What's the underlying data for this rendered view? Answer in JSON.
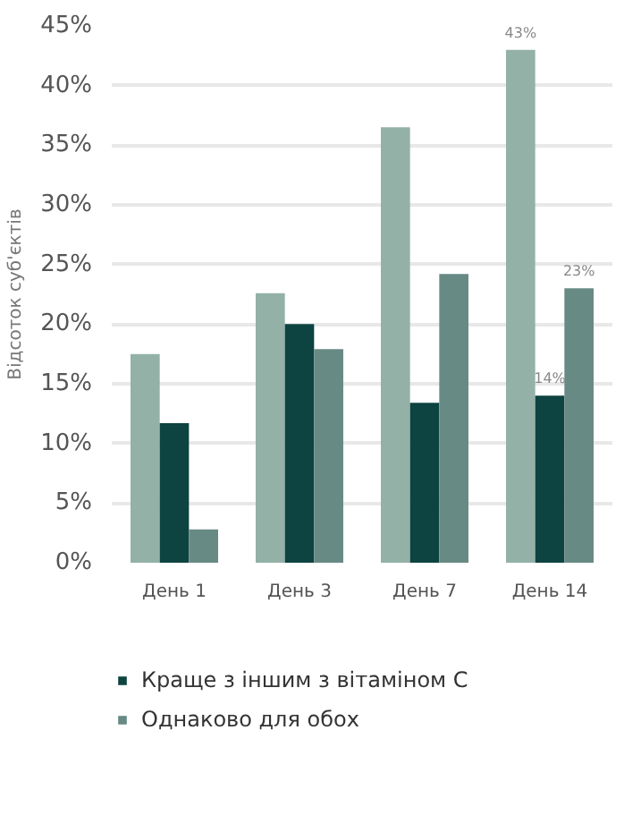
{
  "chart_data": {
    "type": "bar",
    "ylabel": "Відсоток суб'єктів",
    "categories": [
      "День 1",
      "День 3",
      "День 7",
      "День 14"
    ],
    "series": [
      {
        "color": "#93b1a7",
        "values": [
          17.5,
          22.6,
          36.5,
          43
        ],
        "value_labels": [
          null,
          null,
          null,
          "43%"
        ]
      },
      {
        "name": "Краще з іншим з вітаміном C",
        "color": "#0d4340",
        "values": [
          11.7,
          20,
          13.4,
          14
        ],
        "value_labels": [
          null,
          null,
          null,
          "14%"
        ]
      },
      {
        "name": "Однаково для обох",
        "color": "#688a84",
        "values": [
          2.8,
          17.9,
          24.2,
          23
        ],
        "value_labels": [
          null,
          null,
          null,
          "23%"
        ]
      }
    ],
    "ylim": [
      0,
      45
    ],
    "yticks": [
      {
        "value": 0,
        "label": "0%"
      },
      {
        "value": 5,
        "label": "5%"
      },
      {
        "value": 10,
        "label": "10%"
      },
      {
        "value": 15,
        "label": "15%"
      },
      {
        "value": 20,
        "label": "20%"
      },
      {
        "value": 25,
        "label": "25%"
      },
      {
        "value": 30,
        "label": "30%"
      },
      {
        "value": 35,
        "label": "35%"
      },
      {
        "value": 40,
        "label": "40%"
      },
      {
        "value": 45,
        "label": "45%"
      }
    ],
    "grid": "y",
    "legend": "bottom"
  }
}
